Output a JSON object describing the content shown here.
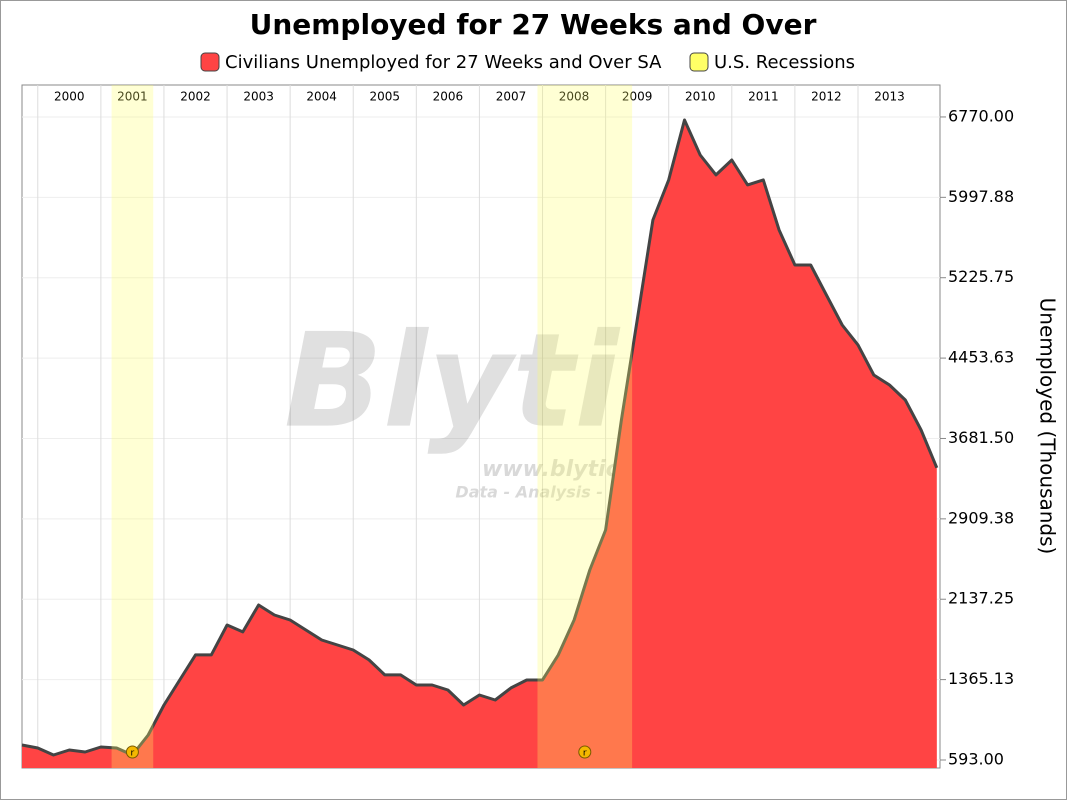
{
  "chart_data": {
    "type": "area",
    "title": "Unemployed for 27 Weeks and Over",
    "y_label": "Unemployed (Thousands)",
    "watermark": [
      "Blytic",
      "www.blytic.com",
      "Data - Analysis - Discussion"
    ],
    "recession_marker": "r",
    "legend": {
      "recession_name": "U.S. Recessions",
      "recession_color": "#ffff66"
    },
    "recessions": [
      {
        "start": 2001.17,
        "end": 2001.83
      },
      {
        "start": 2007.92,
        "end": 2009.42
      }
    ],
    "x": [
      1999.75,
      2000,
      2000.25,
      2000.5,
      2000.75,
      2001,
      2001.25,
      2001.5,
      2001.75,
      2002,
      2002.25,
      2002.5,
      2002.75,
      2003,
      2003.25,
      2003.5,
      2003.75,
      2004,
      2004.25,
      2004.5,
      2004.75,
      2005,
      2005.25,
      2005.5,
      2005.75,
      2006,
      2006.25,
      2006.5,
      2006.75,
      2007,
      2007.25,
      2007.5,
      2007.75,
      2008,
      2008.25,
      2008.5,
      2008.75,
      2009,
      2009.25,
      2009.5,
      2009.75,
      2010,
      2010.25,
      2010.5,
      2010.75,
      2011,
      2011.25,
      2011.5,
      2011.75,
      2012,
      2012.25,
      2012.5,
      2012.75,
      2013,
      2013.25,
      2013.5,
      2013.75,
      2014,
      2014.25
    ],
    "series": [
      {
        "name": "Civilians Unemployed for 27 Weeks and Over SA",
        "color": "#ff4444",
        "values": [
          737,
          708,
          641,
          689,
          670,
          718,
          708,
          641,
          833,
          1121,
          1361,
          1602,
          1602,
          1890,
          1823,
          2082,
          1986,
          1938,
          1842,
          1746,
          1698,
          1650,
          1554,
          1410,
          1410,
          1313,
          1313,
          1265,
          1121,
          1217,
          1169,
          1285,
          1361,
          1361,
          1602,
          1938,
          2418,
          2802,
          3859,
          4820,
          5780,
          6165,
          6741,
          6405,
          6213,
          6357,
          6117,
          6165,
          5684,
          5348,
          5348,
          5060,
          4772,
          4580,
          4291,
          4195,
          4051,
          3763,
          3400
        ]
      }
    ],
    "xlim": [
      1999.75,
      2014.3
    ],
    "xticks": [
      2000,
      2001,
      2002,
      2003,
      2004,
      2005,
      2006,
      2007,
      2008,
      2009,
      2010,
      2011,
      2012,
      2013
    ],
    "ylim": [
      516,
      7077
    ],
    "yticks": [
      {
        "value": 593,
        "label": "593.00"
      },
      {
        "value": 1365.13,
        "label": "1365.13"
      },
      {
        "value": 2137.25,
        "label": "2137.25"
      },
      {
        "value": 2909.38,
        "label": "2909.38"
      },
      {
        "value": 3681.5,
        "label": "3681.50"
      },
      {
        "value": 4453.63,
        "label": "4453.63"
      },
      {
        "value": 5225.75,
        "label": "5225.75"
      },
      {
        "value": 5997.88,
        "label": "5997.88"
      },
      {
        "value": 6770,
        "label": "6770.00"
      }
    ],
    "grid": true
  }
}
